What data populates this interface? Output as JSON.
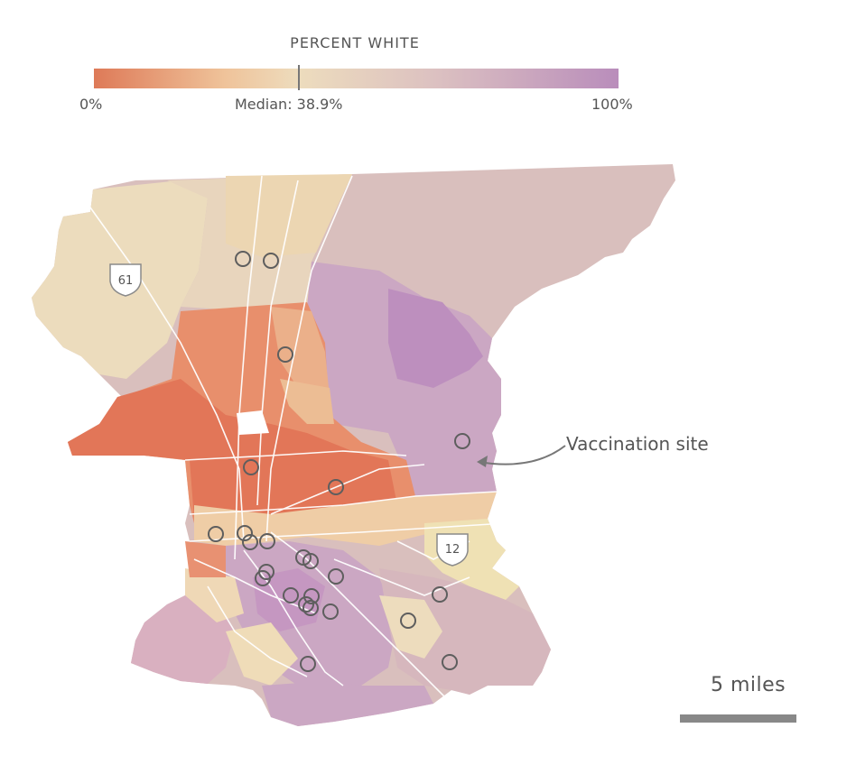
{
  "legend": {
    "title": "PERCENT WHITE",
    "min_label": "0%",
    "median_label": "Median: 38.9%",
    "max_label": "100%",
    "median_value": 38.9,
    "colors": [
      "#de7a58",
      "#efc9a0",
      "#ecdcbd",
      "#dcc1c1",
      "#b98dbb"
    ]
  },
  "map": {
    "highway_labels": [
      "61",
      "12"
    ],
    "vaccination_site_count": 24,
    "colors": {
      "low": "#e57a5a",
      "mid_low": "#eaa07a",
      "median": "#efdcb8",
      "mid_high": "#d9bfbd",
      "high": "#cba7c3",
      "highest": "#bd8fbe"
    }
  },
  "annotation": {
    "label": "Vaccination site"
  },
  "scale": {
    "label": "5 miles"
  }
}
